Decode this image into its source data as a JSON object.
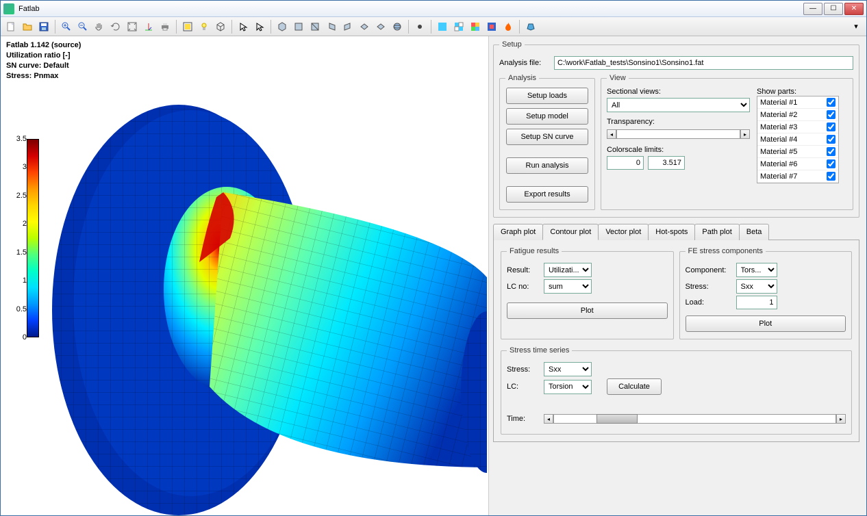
{
  "window": {
    "title": "Fatlab"
  },
  "overlay": {
    "line1": "Fatlab 1.142 (source)",
    "line2": "Utilization ratio [-]",
    "line3": "SN curve: Default",
    "line4": "Stress: Pnmax"
  },
  "colorbar": {
    "min": 0,
    "max": 3.5,
    "ticks": [
      "3.5",
      "3",
      "2.5",
      "2",
      "1.5",
      "1",
      "0.5",
      "0"
    ],
    "gradient": [
      "#7d0000",
      "#d40000",
      "#ff4500",
      "#ff9a00",
      "#ffd500",
      "#fffc00",
      "#baff00",
      "#4fff7d",
      "#00ffc8",
      "#00e0ff",
      "#0099ff",
      "#003fff",
      "#001a8c"
    ]
  },
  "setup": {
    "legend": "Setup",
    "file_label": "Analysis file:",
    "file_value": "C:\\work\\Fatlab_tests\\Sonsino1\\Sonsino1.fat"
  },
  "analysis": {
    "legend": "Analysis",
    "btn_loads": "Setup loads",
    "btn_model": "Setup model",
    "btn_sn": "Setup SN curve",
    "btn_run": "Run analysis",
    "btn_export": "Export results"
  },
  "view": {
    "legend": "View",
    "sectional_label": "Sectional views:",
    "sectional_value": "All",
    "transparency_label": "Transparency:",
    "colorscale_label": "Colorscale limits:",
    "cs_min": "0",
    "cs_max": "3.517",
    "show_parts_label": "Show parts:",
    "materials": [
      "Material #1",
      "Material #2",
      "Material #3",
      "Material #4",
      "Material #5",
      "Material #6",
      "Material #7"
    ]
  },
  "tabs": {
    "items": [
      "Graph plot",
      "Contour plot",
      "Vector plot",
      "Hot-spots",
      "Path plot",
      "Beta"
    ],
    "active": 1
  },
  "fatigue": {
    "legend": "Fatigue results",
    "result_label": "Result:",
    "result_value": "Utilizati...",
    "lc_label": "LC no:",
    "lc_value": "sum",
    "plot_btn": "Plot"
  },
  "fe": {
    "legend": "FE stress components",
    "component_label": "Component:",
    "component_value": "Tors...",
    "stress_label": "Stress:",
    "stress_value": "Sxx",
    "load_label": "Load:",
    "load_value": "1",
    "plot_btn": "Plot"
  },
  "sts": {
    "legend": "Stress time series",
    "stress_label": "Stress:",
    "stress_value": "Sxx",
    "lc_label": "LC:",
    "lc_value": "Torsion",
    "calc_btn": "Calculate",
    "time_label": "Time:"
  },
  "styling": {
    "window_border": "#3a6ea5",
    "panel_bg": "#f0f0f0",
    "button_grad_top": "#fdfdfd",
    "button_grad_bot": "#e3e3e3",
    "close_btn": "#c44444"
  }
}
